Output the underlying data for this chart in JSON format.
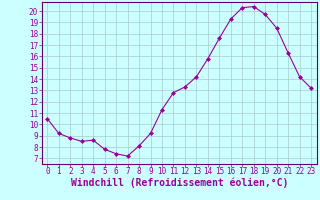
{
  "x": [
    0,
    1,
    2,
    3,
    4,
    5,
    6,
    7,
    8,
    9,
    10,
    11,
    12,
    13,
    14,
    15,
    16,
    17,
    18,
    19,
    20,
    21,
    22,
    23
  ],
  "y": [
    10.5,
    9.2,
    8.8,
    8.5,
    8.6,
    7.8,
    7.4,
    7.2,
    8.1,
    9.2,
    11.3,
    12.8,
    13.3,
    14.2,
    15.8,
    17.6,
    19.3,
    20.3,
    20.4,
    19.7,
    18.5,
    16.3,
    14.2,
    13.2
  ],
  "line_color": "#990099",
  "marker": "D",
  "marker_size": 2.0,
  "xlabel": "Windchill (Refroidissement éolien,°C)",
  "xlim": [
    -0.5,
    23.5
  ],
  "ylim": [
    6.5,
    20.8
  ],
  "yticks": [
    7,
    8,
    9,
    10,
    11,
    12,
    13,
    14,
    15,
    16,
    17,
    18,
    19,
    20
  ],
  "xticks": [
    0,
    1,
    2,
    3,
    4,
    5,
    6,
    7,
    8,
    9,
    10,
    11,
    12,
    13,
    14,
    15,
    16,
    17,
    18,
    19,
    20,
    21,
    22,
    23
  ],
  "background_color": "#ccffff",
  "grid_color": "#aacccc",
  "line_border_color": "#660066",
  "tick_color": "#990099",
  "label_color": "#990099",
  "tick_fontsize": 5.5,
  "xlabel_fontsize": 7.0,
  "linewidth": 0.8
}
